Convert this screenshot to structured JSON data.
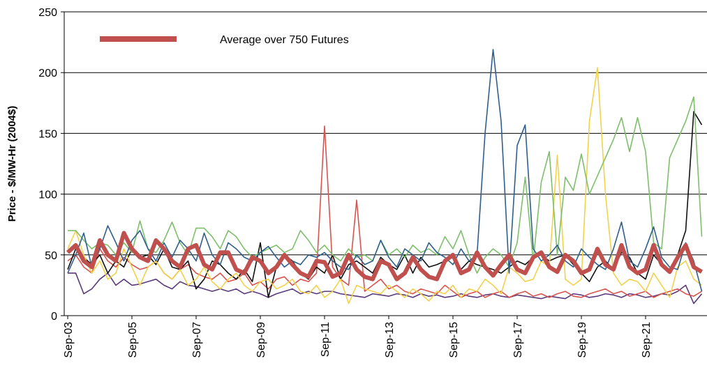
{
  "chart_data": {
    "type": "line",
    "y_label": "Price - $/MW-Hr (2004$)",
    "ylim": [
      0,
      250
    ],
    "yticks": [
      0,
      50,
      100,
      150,
      200,
      250
    ],
    "grid": true,
    "legend": "upper left",
    "categories": [
      "Sep-03",
      null,
      null,
      null,
      null,
      null,
      null,
      null,
      "Sep-05",
      null,
      null,
      null,
      null,
      null,
      null,
      null,
      "Sep-07",
      null,
      null,
      null,
      null,
      null,
      null,
      null,
      "Sep-09",
      null,
      null,
      null,
      null,
      null,
      null,
      null,
      "Sep-11",
      null,
      null,
      null,
      null,
      null,
      null,
      null,
      "Sep-13",
      null,
      null,
      null,
      null,
      null,
      null,
      null,
      "Sep-15",
      null,
      null,
      null,
      null,
      null,
      null,
      null,
      "Sep-17",
      null,
      null,
      null,
      null,
      null,
      null,
      null,
      "Sep-19",
      null,
      null,
      null,
      null,
      null,
      null,
      null,
      "Sep-21",
      null,
      null,
      null,
      null,
      null,
      null,
      null
    ],
    "series": [
      {
        "name": "Average over 750 Futures",
        "color": "#c0504d",
        "values": [
          52,
          58,
          45,
          40,
          62,
          50,
          45,
          68,
          55,
          48,
          45,
          62,
          55,
          45,
          40,
          55,
          58,
          42,
          38,
          52,
          52,
          38,
          35,
          48,
          45,
          35,
          40,
          50,
          42,
          35,
          32,
          45,
          44,
          32,
          35,
          50,
          38,
          32,
          30,
          45,
          42,
          30,
          35,
          48,
          38,
          32,
          30,
          45,
          50,
          35,
          38,
          52,
          40,
          33,
          42,
          50,
          38,
          35,
          48,
          52,
          40,
          36,
          50,
          45,
          35,
          38,
          55,
          42,
          38,
          58,
          40,
          35,
          38,
          58,
          42,
          36,
          48,
          58,
          40,
          36
        ]
      },
      {
        "color": "#2e5f8c",
        "values": [
          35,
          50,
          68,
          40,
          55,
          74,
          60,
          45,
          62,
          70,
          55,
          45,
          60,
          48,
          62,
          55,
          45,
          68,
          50,
          42,
          60,
          55,
          48,
          45,
          52,
          57,
          48,
          40,
          45,
          42,
          50,
          48,
          52,
          45,
          40,
          38,
          50,
          42,
          45,
          62,
          48,
          40,
          55,
          50,
          45,
          60,
          52,
          48,
          42,
          55,
          45,
          50,
          150,
          219,
          160,
          35,
          140,
          157,
          55,
          45,
          50,
          58,
          45,
          40,
          55,
          48,
          42,
          38,
          55,
          77,
          45,
          40,
          55,
          73,
          48,
          40,
          38,
          60,
          45,
          20
        ]
      },
      {
        "color": "#7dbf6a",
        "values": [
          70,
          70,
          62,
          55,
          60,
          58,
          50,
          60,
          52,
          78,
          55,
          52,
          62,
          77,
          60,
          50,
          72,
          72,
          65,
          55,
          70,
          65,
          55,
          48,
          52,
          55,
          58,
          52,
          55,
          70,
          62,
          52,
          58,
          50,
          45,
          55,
          48,
          50,
          45,
          62,
          50,
          55,
          48,
          58,
          52,
          55,
          50,
          65,
          55,
          70,
          50,
          35,
          48,
          55,
          50,
          40,
          60,
          114,
          45,
          110,
          135,
          50,
          114,
          103,
          133,
          100,
          115,
          130,
          145,
          163,
          135,
          163,
          135,
          60,
          55,
          130,
          145,
          160,
          180,
          65
        ]
      },
      {
        "color": "#f2d24a",
        "values": [
          55,
          70,
          50,
          35,
          45,
          30,
          35,
          55,
          40,
          25,
          40,
          45,
          35,
          30,
          38,
          25,
          30,
          40,
          28,
          22,
          30,
          35,
          25,
          20,
          28,
          30,
          22,
          25,
          30,
          20,
          18,
          25,
          15,
          20,
          30,
          10,
          25,
          22,
          20,
          18,
          25,
          20,
          15,
          22,
          18,
          12,
          20,
          18,
          25,
          15,
          22,
          20,
          30,
          25,
          18,
          40,
          35,
          28,
          30,
          45,
          40,
          132,
          30,
          25,
          30,
          160,
          204,
          100,
          35,
          25,
          30,
          28,
          20,
          35,
          25,
          15,
          40,
          45,
          30,
          25
        ]
      },
      {
        "color": "#111111",
        "values": [
          38,
          55,
          48,
          42,
          50,
          35,
          45,
          40,
          55,
          48,
          50,
          42,
          55,
          40,
          38,
          45,
          22,
          30,
          45,
          42,
          35,
          30,
          38,
          28,
          60,
          15,
          40,
          50,
          45,
          35,
          30,
          40,
          35,
          50,
          30,
          42,
          45,
          40,
          35,
          48,
          42,
          38,
          50,
          35,
          48,
          40,
          42,
          45,
          48,
          38,
          45,
          42,
          40,
          38,
          35,
          40,
          45,
          42,
          48,
          50,
          45,
          48,
          50,
          42,
          35,
          28,
          40,
          45,
          38,
          52,
          48,
          35,
          30,
          50,
          42,
          38,
          50,
          70,
          168,
          157
        ]
      },
      {
        "color": "#d9534f",
        "values": [
          45,
          50,
          40,
          35,
          55,
          45,
          40,
          48,
          42,
          38,
          40,
          45,
          35,
          30,
          38,
          42,
          35,
          32,
          30,
          35,
          28,
          30,
          35,
          25,
          28,
          22,
          30,
          32,
          25,
          30,
          28,
          35,
          156,
          40,
          30,
          25,
          95,
          20,
          25,
          30,
          22,
          25,
          20,
          18,
          22,
          20,
          18,
          25,
          20,
          15,
          18,
          20,
          15,
          18,
          20,
          15,
          18,
          20,
          16,
          18,
          15,
          18,
          20,
          16,
          15,
          18,
          20,
          22,
          18,
          20,
          16,
          18,
          20,
          15,
          18,
          20,
          22,
          18,
          16,
          20
        ]
      },
      {
        "color": "#5b3a7a",
        "values": [
          35,
          35,
          18,
          22,
          30,
          35,
          25,
          30,
          25,
          26,
          28,
          30,
          25,
          22,
          28,
          25,
          24,
          22,
          20,
          22,
          20,
          22,
          18,
          20,
          18,
          15,
          18,
          20,
          22,
          18,
          20,
          18,
          20,
          20,
          18,
          17,
          16,
          15,
          18,
          17,
          16,
          18,
          17,
          15,
          18,
          16,
          17,
          15,
          16,
          18,
          16,
          15,
          17,
          18,
          16,
          15,
          17,
          16,
          15,
          14,
          16,
          15,
          14,
          18,
          17,
          15,
          16,
          18,
          17,
          15,
          18,
          17,
          15,
          16,
          18,
          17,
          20,
          25,
          10,
          18
        ]
      }
    ]
  }
}
